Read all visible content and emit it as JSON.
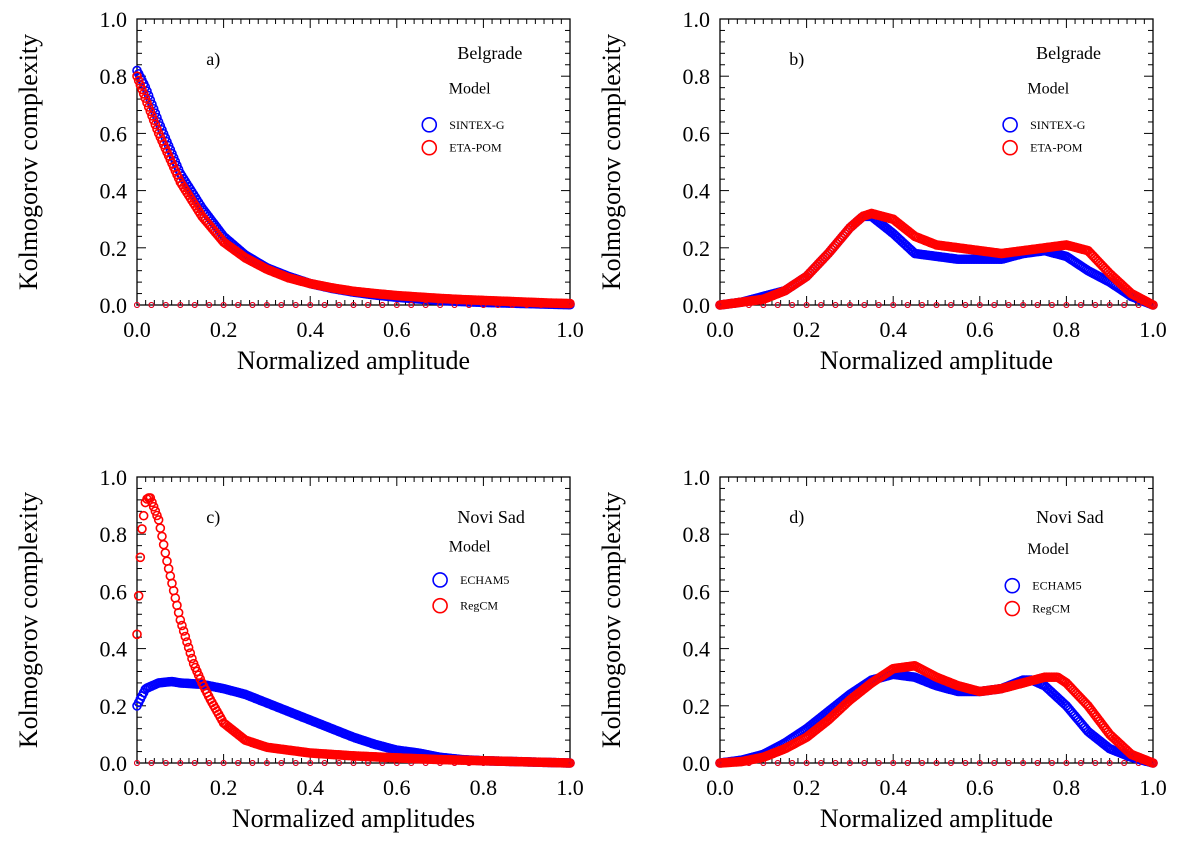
{
  "chart_data": [
    {
      "panel": "a)",
      "type": "scatter",
      "annotation": "Belgrade",
      "legend_title": "Model",
      "legend_position": "top-right",
      "xlabel": "Normalized amplitude",
      "ylabel": "Kolmogorov complexity",
      "xlim": [
        0,
        1
      ],
      "ylim": [
        0,
        1
      ],
      "x_ticks": [
        "0.0",
        "0.2",
        "0.4",
        "0.6",
        "0.8",
        "1.0"
      ],
      "y_ticks": [
        "0.0",
        "0.2",
        "0.4",
        "0.6",
        "0.8",
        "1.0"
      ],
      "grid": false,
      "series": [
        {
          "name": "SINTEX-G",
          "color": "#0000ff",
          "x": [
            0.0,
            0.02,
            0.05,
            0.1,
            0.15,
            0.2,
            0.25,
            0.3,
            0.35,
            0.4,
            0.45,
            0.5,
            0.55,
            0.6,
            0.65,
            0.7,
            0.75,
            0.8,
            0.85,
            0.9,
            0.95,
            1.0
          ],
          "y": [
            0.82,
            0.76,
            0.64,
            0.46,
            0.34,
            0.24,
            0.175,
            0.13,
            0.1,
            0.075,
            0.058,
            0.045,
            0.035,
            0.027,
            0.021,
            0.016,
            0.012,
            0.009,
            0.007,
            0.005,
            0.003,
            0.001
          ]
        },
        {
          "name": "ETA-POM",
          "color": "#ff0000",
          "x": [
            0.0,
            0.02,
            0.05,
            0.1,
            0.15,
            0.2,
            0.25,
            0.3,
            0.35,
            0.4,
            0.45,
            0.5,
            0.55,
            0.6,
            0.65,
            0.7,
            0.75,
            0.8,
            0.85,
            0.9,
            0.95,
            1.0
          ],
          "y": [
            0.8,
            0.72,
            0.6,
            0.43,
            0.31,
            0.22,
            0.165,
            0.125,
            0.095,
            0.075,
            0.06,
            0.048,
            0.04,
            0.033,
            0.028,
            0.023,
            0.019,
            0.016,
            0.013,
            0.01,
            0.007,
            0.005
          ]
        }
      ]
    },
    {
      "panel": "b)",
      "type": "scatter",
      "annotation": "Belgrade",
      "legend_title": "Model",
      "legend_position": "top-right",
      "xlabel": "Normalized amplitude",
      "ylabel": "Kolmogorov complexity",
      "xlim": [
        0,
        1
      ],
      "ylim": [
        0,
        1
      ],
      "x_ticks": [
        "0.0",
        "0.2",
        "0.4",
        "0.6",
        "0.8",
        "1.0"
      ],
      "y_ticks": [
        "0.0",
        "0.2",
        "0.4",
        "0.6",
        "0.8",
        "1.0"
      ],
      "grid": false,
      "series": [
        {
          "name": "SINTEX-G",
          "color": "#0000ff",
          "x": [
            0.0,
            0.05,
            0.1,
            0.15,
            0.2,
            0.25,
            0.3,
            0.33,
            0.35,
            0.4,
            0.45,
            0.5,
            0.55,
            0.6,
            0.65,
            0.7,
            0.75,
            0.8,
            0.85,
            0.9,
            0.95,
            1.0
          ],
          "y": [
            0.0,
            0.01,
            0.03,
            0.05,
            0.1,
            0.18,
            0.27,
            0.31,
            0.31,
            0.25,
            0.18,
            0.17,
            0.16,
            0.16,
            0.16,
            0.18,
            0.19,
            0.17,
            0.12,
            0.08,
            0.03,
            0.0
          ]
        },
        {
          "name": "ETA-POM",
          "color": "#ff0000",
          "x": [
            0.0,
            0.05,
            0.1,
            0.15,
            0.2,
            0.25,
            0.3,
            0.33,
            0.35,
            0.4,
            0.45,
            0.5,
            0.55,
            0.6,
            0.65,
            0.7,
            0.75,
            0.8,
            0.85,
            0.9,
            0.95,
            1.0
          ],
          "y": [
            0.0,
            0.01,
            0.02,
            0.05,
            0.1,
            0.18,
            0.27,
            0.31,
            0.32,
            0.3,
            0.24,
            0.21,
            0.2,
            0.19,
            0.18,
            0.19,
            0.2,
            0.21,
            0.19,
            0.11,
            0.04,
            0.0
          ]
        }
      ]
    },
    {
      "panel": "c)",
      "type": "scatter",
      "annotation": "Novi Sad",
      "legend_title": "Model",
      "legend_position": "top-right",
      "xlabel": "Normalized amplitudes",
      "ylabel": "Kolmogorov complexity",
      "xlim": [
        0,
        1
      ],
      "ylim": [
        0,
        1
      ],
      "x_ticks": [
        "0.0",
        "0.2",
        "0.4",
        "0.6",
        "0.8",
        "1.0"
      ],
      "y_ticks": [
        "0.0",
        "0.2",
        "0.4",
        "0.6",
        "0.8",
        "1.0"
      ],
      "grid": false,
      "series": [
        {
          "name": "ECHAM5",
          "color": "#0000ff",
          "x": [
            0.0,
            0.02,
            0.05,
            0.08,
            0.1,
            0.15,
            0.2,
            0.25,
            0.3,
            0.35,
            0.4,
            0.45,
            0.5,
            0.55,
            0.6,
            0.65,
            0.7,
            0.75,
            0.8,
            0.9,
            1.0
          ],
          "y": [
            0.2,
            0.26,
            0.28,
            0.285,
            0.28,
            0.275,
            0.26,
            0.24,
            0.21,
            0.18,
            0.15,
            0.12,
            0.09,
            0.065,
            0.045,
            0.035,
            0.02,
            0.012,
            0.008,
            0.004,
            0.0
          ]
        },
        {
          "name": "RegCM",
          "color": "#ff0000",
          "x": [
            0.0,
            0.01,
            0.02,
            0.03,
            0.05,
            0.07,
            0.1,
            0.13,
            0.15,
            0.17,
            0.2,
            0.25,
            0.3,
            0.35,
            0.4,
            0.5,
            0.6,
            0.7,
            0.8,
            0.9,
            1.0
          ],
          "y": [
            0.45,
            0.8,
            0.92,
            0.93,
            0.85,
            0.7,
            0.5,
            0.35,
            0.28,
            0.22,
            0.14,
            0.08,
            0.055,
            0.045,
            0.035,
            0.025,
            0.018,
            0.012,
            0.008,
            0.004,
            0.0
          ]
        }
      ]
    },
    {
      "panel": "d)",
      "type": "scatter",
      "annotation": "Novi Sad",
      "legend_title": "Model",
      "legend_position": "top-right",
      "xlabel": "Normalized amplitude",
      "ylabel": "Kolmogorov complexity",
      "xlim": [
        0,
        1
      ],
      "ylim": [
        0,
        1
      ],
      "x_ticks": [
        "0.0",
        "0.2",
        "0.4",
        "0.6",
        "0.8",
        "1.0"
      ],
      "y_ticks": [
        "0.0",
        "0.2",
        "0.4",
        "0.6",
        "0.8",
        "1.0"
      ],
      "grid": false,
      "series": [
        {
          "name": "ECHAM5",
          "color": "#0000ff",
          "x": [
            0.0,
            0.05,
            0.1,
            0.15,
            0.2,
            0.25,
            0.3,
            0.35,
            0.4,
            0.45,
            0.5,
            0.55,
            0.6,
            0.65,
            0.7,
            0.72,
            0.75,
            0.8,
            0.85,
            0.9,
            0.95,
            1.0
          ],
          "y": [
            0.0,
            0.01,
            0.03,
            0.07,
            0.12,
            0.18,
            0.24,
            0.29,
            0.31,
            0.3,
            0.27,
            0.25,
            0.25,
            0.26,
            0.29,
            0.29,
            0.27,
            0.2,
            0.11,
            0.05,
            0.02,
            0.0
          ]
        },
        {
          "name": "RegCM",
          "color": "#ff0000",
          "x": [
            0.0,
            0.05,
            0.1,
            0.15,
            0.2,
            0.25,
            0.3,
            0.35,
            0.4,
            0.45,
            0.5,
            0.55,
            0.6,
            0.65,
            0.7,
            0.75,
            0.78,
            0.8,
            0.85,
            0.9,
            0.95,
            1.0
          ],
          "y": [
            0.0,
            0.005,
            0.02,
            0.05,
            0.09,
            0.15,
            0.22,
            0.28,
            0.33,
            0.34,
            0.3,
            0.27,
            0.25,
            0.26,
            0.28,
            0.3,
            0.3,
            0.28,
            0.2,
            0.1,
            0.03,
            0.0
          ]
        }
      ]
    }
  ]
}
